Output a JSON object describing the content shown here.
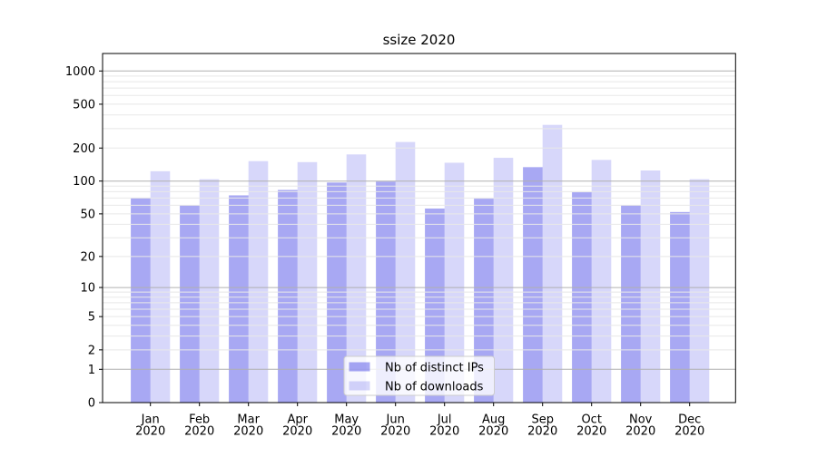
{
  "chart_data": {
    "type": "bar",
    "title": "ssize 2020",
    "categories": [
      "Jan 2020",
      "Feb 2020",
      "Mar 2020",
      "Apr 2020",
      "May 2020",
      "Jun 2020",
      "Jul 2020",
      "Aug 2020",
      "Sep 2020",
      "Oct 2020",
      "Nov 2020",
      "Dec 2020"
    ],
    "series": [
      {
        "name": "Nb of distinct IPs",
        "base_color": "#0000dd",
        "alpha": 0.34,
        "color_on_white": "#a8a8f4",
        "values": [
          70,
          60,
          74,
          83,
          97,
          99,
          56,
          69,
          134,
          79,
          60,
          52
        ]
      },
      {
        "name": "Nb of downloads",
        "base_color": "#0000dd",
        "alpha": 0.155,
        "color_on_white": "#d8d8f8",
        "values": [
          123,
          104,
          152,
          149,
          175,
          227,
          147,
          163,
          325,
          156,
          125,
          104
        ]
      }
    ],
    "xlabel": "",
    "ylabel": "",
    "yscale": "log1p",
    "ylim": [
      0,
      1440
    ],
    "yticks": [
      0,
      1,
      2,
      5,
      10,
      20,
      50,
      100,
      200,
      500,
      1000
    ],
    "major_gridline_values": [
      1,
      10,
      100,
      1000
    ],
    "minor_gridline_multiples": [
      2,
      3,
      4,
      5,
      6,
      7,
      8,
      9
    ],
    "minor_gridline_decades": [
      1,
      10,
      100
    ],
    "grid": true,
    "legend_position": "inside-bottom-center",
    "colors": {
      "major_grid": "#b0b0b0",
      "minor_grid": "#e8e8e8",
      "spine": "#000000",
      "legend_border": "#cccccc",
      "legend_background": "rgba(255,255,255,0.8)"
    }
  }
}
